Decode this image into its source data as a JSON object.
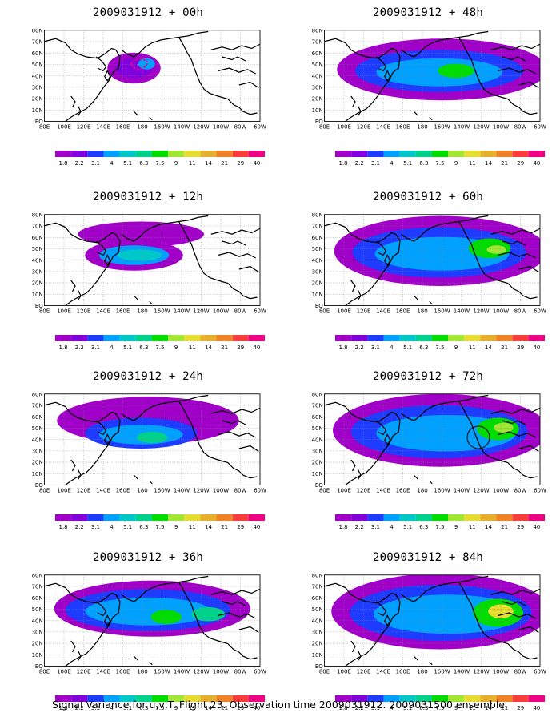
{
  "panels": [
    {
      "title": "2009031912 + 00h",
      "lead": 0
    },
    {
      "title": "2009031912 + 48h",
      "lead": 48
    },
    {
      "title": "2009031912 + 12h",
      "lead": 12
    },
    {
      "title": "2009031912 + 60h",
      "lead": 60
    },
    {
      "title": "2009031912 + 24h",
      "lead": 24
    },
    {
      "title": "2009031912 + 72h",
      "lead": 72
    },
    {
      "title": "2009031912 + 36h",
      "lead": 36
    },
    {
      "title": "2009031912 + 84h",
      "lead": 84
    }
  ],
  "lat_labels": [
    "80N",
    "70N",
    "60N",
    "50N",
    "40N",
    "30N",
    "20N",
    "10N",
    "EQ"
  ],
  "lon_labels": [
    "80E",
    "100E",
    "120E",
    "140E",
    "160E",
    "180",
    "160W",
    "140W",
    "120W",
    "100W",
    "80W",
    "60W"
  ],
  "colorbar": {
    "labels": [
      "1.8",
      "2.2",
      "3.1",
      "4",
      "5.1",
      "6.3",
      "7.5",
      "9",
      "11",
      "14",
      "21",
      "29",
      "40"
    ],
    "colors": [
      "#a000c8",
      "#8200dc",
      "#1e3cff",
      "#00a0ff",
      "#00c8c8",
      "#00d28c",
      "#00dc00",
      "#a0e632",
      "#e6dc32",
      "#e6af2d",
      "#f08228",
      "#fa3c3c",
      "#f00082"
    ],
    "last_panel_first_label": "1.6"
  },
  "footer": "Signal Variance for u,v,T. Flight 23. Observation time 2009031912. 2009031500 ensemble."
}
